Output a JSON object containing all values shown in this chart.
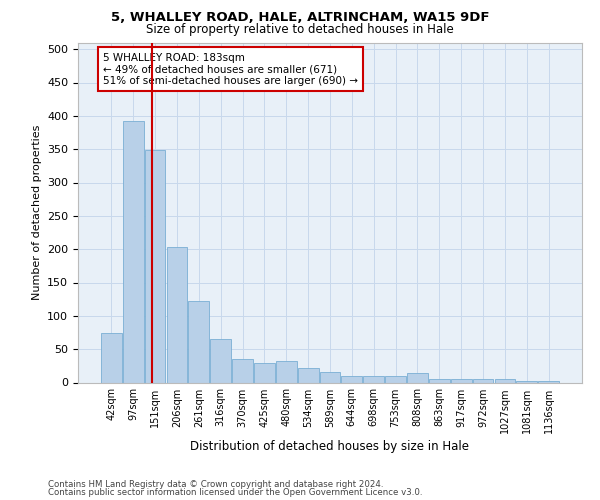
{
  "title1": "5, WHALLEY ROAD, HALE, ALTRINCHAM, WA15 9DF",
  "title2": "Size of property relative to detached houses in Hale",
  "xlabel": "Distribution of detached houses by size in Hale",
  "ylabel": "Number of detached properties",
  "footer1": "Contains HM Land Registry data © Crown copyright and database right 2024.",
  "footer2": "Contains public sector information licensed under the Open Government Licence v3.0.",
  "categories": [
    "42sqm",
    "97sqm",
    "151sqm",
    "206sqm",
    "261sqm",
    "316sqm",
    "370sqm",
    "425sqm",
    "480sqm",
    "534sqm",
    "589sqm",
    "644sqm",
    "698sqm",
    "753sqm",
    "808sqm",
    "863sqm",
    "917sqm",
    "972sqm",
    "1027sqm",
    "1081sqm",
    "1136sqm"
  ],
  "values": [
    75,
    393,
    349,
    204,
    122,
    65,
    35,
    30,
    32,
    22,
    16,
    10,
    10,
    10,
    15,
    5,
    5,
    5,
    5,
    3,
    3
  ],
  "bar_color": "#b8d0e8",
  "bar_edge_color": "#7aafd4",
  "grid_color": "#c8d8ec",
  "bg_color": "#e8f0f8",
  "annotation_text": "5 WHALLEY ROAD: 183sqm\n← 49% of detached houses are smaller (671)\n51% of semi-detached houses are larger (690) →",
  "annotation_box_color": "#ffffff",
  "annotation_box_edge": "#cc0000",
  "red_line_x": 1.85,
  "ylim": [
    0,
    510
  ],
  "yticks": [
    0,
    50,
    100,
    150,
    200,
    250,
    300,
    350,
    400,
    450,
    500
  ]
}
